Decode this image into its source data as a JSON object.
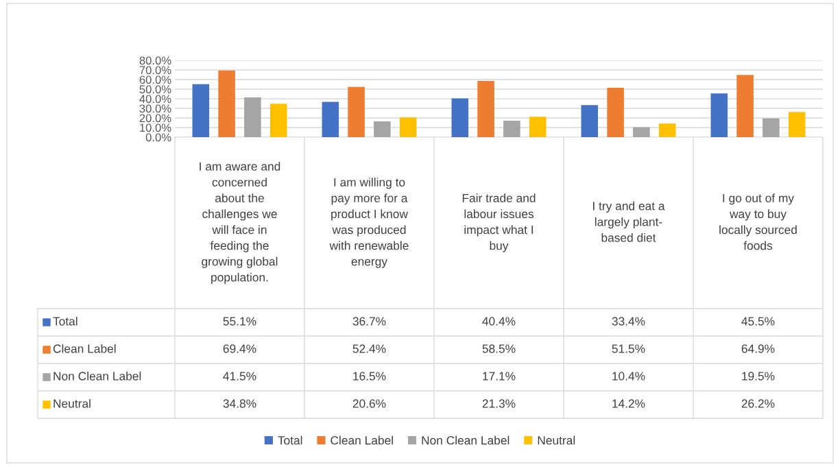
{
  "chart_data": {
    "type": "bar",
    "categories": [
      "I am aware and\nconcerned\nabout the\nchallenges we\nwill face in\nfeeding the\ngrowing global\npopulation.",
      "I am willing to\npay more for a\nproduct I know\nwas produced\nwith renewable\nenergy",
      "Fair trade and\nlabour issues\nimpact what I\nbuy",
      "I try and eat a\nlargely plant-\nbased diet",
      "I go out of my\nway to buy\nlocally sourced\nfoods"
    ],
    "series": [
      {
        "name": "Total",
        "color": "#4472c4",
        "values": [
          55.1,
          36.7,
          40.4,
          33.4,
          45.5
        ],
        "value_labels": [
          "55.1%",
          "36.7%",
          "40.4%",
          "33.4%",
          "45.5%"
        ]
      },
      {
        "name": "Clean Label",
        "color": "#ed7d31",
        "values": [
          69.4,
          52.4,
          58.5,
          51.5,
          64.9
        ],
        "value_labels": [
          "69.4%",
          "52.4%",
          "58.5%",
          "51.5%",
          "64.9%"
        ]
      },
      {
        "name": "Non Clean Label",
        "color": "#a5a5a5",
        "values": [
          41.5,
          16.5,
          17.1,
          10.4,
          19.5
        ],
        "value_labels": [
          "41.5%",
          "16.5%",
          "17.1%",
          "10.4%",
          "19.5%"
        ]
      },
      {
        "name": "Neutral",
        "color": "#ffc000",
        "values": [
          34.8,
          20.6,
          21.3,
          14.2,
          26.2
        ],
        "value_labels": [
          "34.8%",
          "20.6%",
          "21.3%",
          "14.2%",
          "26.2%"
        ]
      }
    ],
    "ylim": [
      0,
      80
    ],
    "yticks": [
      {
        "value": 0,
        "label": "0.0%"
      },
      {
        "value": 10,
        "label": "10.0%"
      },
      {
        "value": 20,
        "label": "20.0%"
      },
      {
        "value": 30,
        "label": "30.0%"
      },
      {
        "value": 40,
        "label": "40.0%"
      },
      {
        "value": 50,
        "label": "50.0%"
      },
      {
        "value": 60,
        "label": "60.0%"
      },
      {
        "value": 70,
        "label": "70.0%"
      },
      {
        "value": 80,
        "label": "80.0%"
      }
    ],
    "grid": "y",
    "legend": "bottom",
    "tick_labels": "y"
  }
}
